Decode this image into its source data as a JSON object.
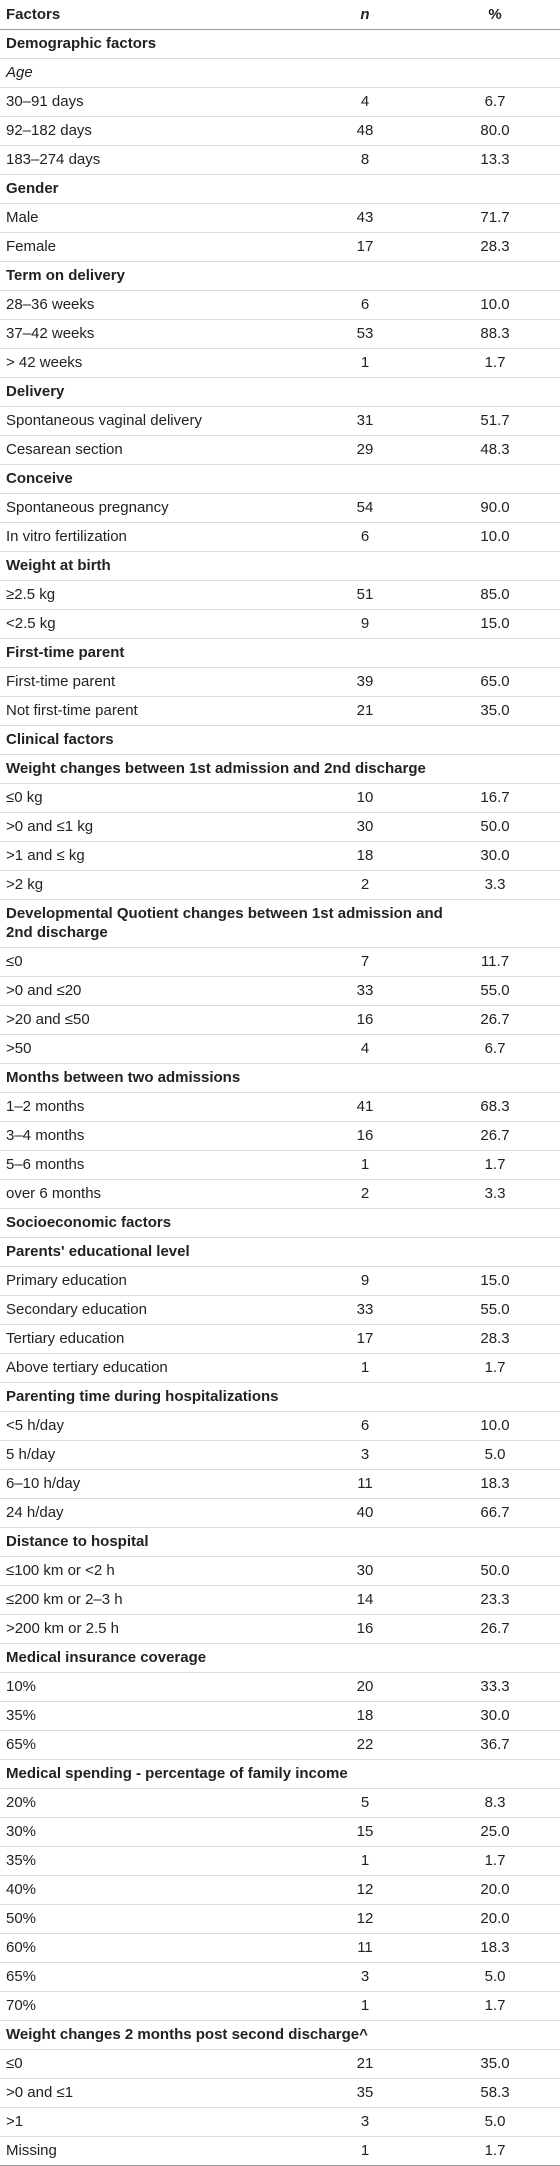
{
  "table": {
    "header": [
      "Factors",
      "n",
      "%"
    ],
    "sections": [
      {
        "title": "Demographic factors",
        "groups": [
          {
            "title": "Age",
            "emphasis": "italic",
            "rows": [
              [
                "30–91 days",
                "4",
                "6.7"
              ],
              [
                "92–182 days",
                "48",
                "80.0"
              ],
              [
                "183–274 days",
                "8",
                "13.3"
              ]
            ]
          },
          {
            "title": "Gender",
            "rows": [
              [
                "Male",
                "43",
                "71.7"
              ],
              [
                "Female",
                "17",
                "28.3"
              ]
            ]
          },
          {
            "title": "Term on delivery",
            "rows": [
              [
                "28–36 weeks",
                "6",
                "10.0"
              ],
              [
                "37–42 weeks",
                "53",
                "88.3"
              ],
              [
                "> 42 weeks",
                "1",
                "1.7"
              ]
            ]
          },
          {
            "title": "Delivery",
            "rows": [
              [
                "Spontaneous vaginal delivery",
                "31",
                "51.7"
              ],
              [
                "Cesarean section",
                "29",
                "48.3"
              ]
            ]
          },
          {
            "title": "Conceive",
            "rows": [
              [
                "Spontaneous pregnancy",
                "54",
                "90.0"
              ],
              [
                "In vitro fertilization",
                "6",
                "10.0"
              ]
            ]
          },
          {
            "title": "Weight at birth",
            "rows": [
              [
                "≥2.5 kg",
                "51",
                "85.0"
              ],
              [
                "<2.5 kg",
                "9",
                "15.0"
              ]
            ]
          },
          {
            "title": "First-time parent",
            "rows": [
              [
                "First-time parent",
                "39",
                "65.0"
              ],
              [
                "Not first-time parent",
                "21",
                "35.0"
              ]
            ]
          }
        ]
      },
      {
        "title": "Clinical factors",
        "groups": [
          {
            "title": "Weight changes between 1st admission and 2nd discharge",
            "rows": [
              [
                "≤0 kg",
                "10",
                "16.7"
              ],
              [
                ">0 and ≤1 kg",
                "30",
                "50.0"
              ],
              [
                ">1 and ≤ kg",
                "18",
                "30.0"
              ],
              [
                ">2 kg",
                "2",
                "3.3"
              ]
            ]
          },
          {
            "title": "Developmental Quotient changes between 1st admission and 2nd discharge",
            "rows": [
              [
                "≤0",
                "7",
                "11.7"
              ],
              [
                ">0 and ≤20",
                "33",
                "55.0"
              ],
              [
                ">20 and ≤50",
                "16",
                "26.7"
              ],
              [
                ">50",
                "4",
                "6.7"
              ]
            ]
          },
          {
            "title": "Months between two admissions",
            "rows": [
              [
                "1–2 months",
                "41",
                "68.3"
              ],
              [
                "3–4 months",
                "16",
                "26.7"
              ],
              [
                "5–6 months",
                "1",
                "1.7"
              ],
              [
                "over 6 months",
                "2",
                "3.3"
              ]
            ]
          }
        ]
      },
      {
        "title": "Socioeconomic factors",
        "groups": [
          {
            "title": "Parents' educational level",
            "rows": [
              [
                "Primary education",
                "9",
                "15.0"
              ],
              [
                "Secondary education",
                "33",
                "55.0"
              ],
              [
                "Tertiary education",
                "17",
                "28.3"
              ],
              [
                "Above tertiary education",
                "1",
                "1.7"
              ]
            ]
          },
          {
            "title": "Parenting time during hospitalizations",
            "rows": [
              [
                "<5 h/day",
                "6",
                "10.0"
              ],
              [
                "5 h/day",
                "3",
                "5.0"
              ],
              [
                "6–10 h/day",
                "11",
                "18.3"
              ],
              [
                "24 h/day",
                "40",
                "66.7"
              ]
            ]
          },
          {
            "title": "Distance to hospital",
            "rows": [
              [
                "≤100 km or <2 h",
                "30",
                "50.0"
              ],
              [
                "≤200 km or 2–3 h",
                "14",
                "23.3"
              ],
              [
                ">200 km or 2.5 h",
                "16",
                "26.7"
              ]
            ]
          },
          {
            "title": "Medical insurance coverage",
            "rows": [
              [
                "10%",
                "20",
                "33.3"
              ],
              [
                "35%",
                "18",
                "30.0"
              ],
              [
                "65%",
                "22",
                "36.7"
              ]
            ]
          },
          {
            "title": "Medical spending - percentage of family income",
            "rows": [
              [
                "20%",
                "5",
                "8.3"
              ],
              [
                "30%",
                "15",
                "25.0"
              ],
              [
                "35%",
                "1",
                "1.7"
              ],
              [
                "40%",
                "12",
                "20.0"
              ],
              [
                "50%",
                "12",
                "20.0"
              ],
              [
                "60%",
                "11",
                "18.3"
              ],
              [
                "65%",
                "3",
                "5.0"
              ],
              [
                "70%",
                "1",
                "1.7"
              ]
            ]
          },
          {
            "title": "Weight changes 2 months post second discharge^",
            "rows": [
              [
                "≤0",
                "21",
                "35.0"
              ],
              [
                ">0 and ≤1",
                "35",
                "58.3"
              ],
              [
                ">1",
                "3",
                "5.0"
              ],
              [
                "Missing",
                "1",
                "1.7"
              ]
            ]
          }
        ]
      }
    ]
  }
}
